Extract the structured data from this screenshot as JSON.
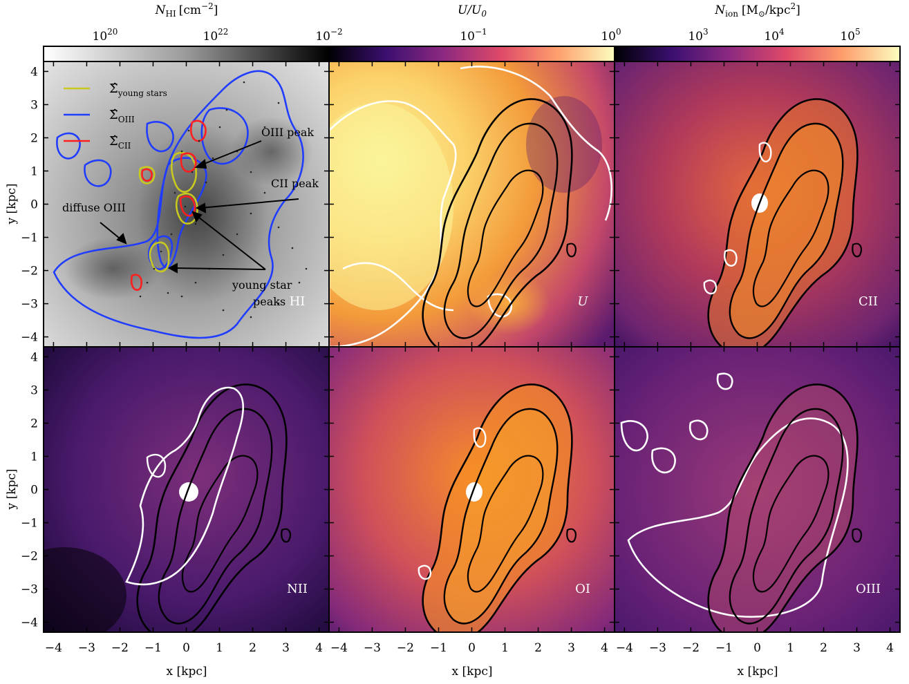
{
  "chart_data": [
    {
      "type": "heatmap",
      "panel": "HI",
      "label": "HI",
      "colormap": "grayscale",
      "colorbar": {
        "label_var": "N",
        "label_sub": "HI",
        "label_unit": "[cm",
        "label_exp": "−2",
        "label_close": "]",
        "scale": "log",
        "ticks": [
          {
            "base": "10",
            "exp": "20"
          },
          {
            "base": "10",
            "exp": "22"
          }
        ]
      },
      "xlim": [
        -4.3,
        4.3
      ],
      "ylim": [
        -4.3,
        4.3
      ],
      "ylabel": "y [kpc]",
      "legend": {
        "placement": "top-left",
        "entries": [
          {
            "name": "Σ̂",
            "sub": "young stars",
            "color": "#c8c820"
          },
          {
            "name": "Σ̂",
            "sub": "OIII",
            "color": "#1f3cff"
          },
          {
            "name": "Σ̂",
            "sub": "CII",
            "color": "#ff1f1f"
          }
        ]
      },
      "annotations": [
        {
          "text": "OIII peak",
          "x": 2.4,
          "y": 2.1
        },
        {
          "text": "CII peak",
          "x": 3.0,
          "y": 0.55
        },
        {
          "text": "diffuse OIII",
          "x": -3.6,
          "y": -0.1
        },
        {
          "text": "young star",
          "x": 1.4,
          "y": -2.5
        },
        {
          "text": "peaks",
          "x": 2.0,
          "y": -3.0
        }
      ]
    },
    {
      "type": "heatmap",
      "panel": "U",
      "label": "U",
      "colormap": "inferno",
      "colorbar": {
        "label": "U/U",
        "label_sub": "0",
        "scale": "log",
        "ticks": [
          {
            "base": "10",
            "exp": "−2"
          },
          {
            "base": "10",
            "exp": "−1"
          },
          {
            "base": "10",
            "exp": "0"
          }
        ]
      },
      "xlim": [
        -4.3,
        4.3
      ],
      "ylim": [
        -4.3,
        4.3
      ]
    },
    {
      "type": "heatmap",
      "panel": "CII",
      "label": "CII",
      "colormap": "inferno",
      "colorbar": {
        "label_var": "N",
        "label_sub": "ion",
        "label_unit": "[M",
        "label_sun_sub": "⊙",
        "label_tail": "/kpc",
        "label_exp": "2",
        "label_close": "]",
        "scale": "log",
        "ticks": [
          {
            "base": "10",
            "exp": "3"
          },
          {
            "base": "10",
            "exp": "4"
          },
          {
            "base": "10",
            "exp": "5"
          }
        ]
      },
      "xlim": [
        -4.3,
        4.3
      ],
      "ylim": [
        -4.3,
        4.3
      ]
    },
    {
      "type": "heatmap",
      "panel": "NII",
      "label": "NII",
      "colormap": "inferno",
      "xlim": [
        -4.3,
        4.3
      ],
      "ylim": [
        -4.3,
        4.3
      ],
      "xlabel": "x [kpc]",
      "ylabel": "y [kpc]"
    },
    {
      "type": "heatmap",
      "panel": "OI",
      "label": "OI",
      "colormap": "inferno",
      "xlim": [
        -4.3,
        4.3
      ],
      "ylim": [
        -4.3,
        4.3
      ],
      "xlabel": "x [kpc]"
    },
    {
      "type": "heatmap",
      "panel": "OIII",
      "label": "OIII",
      "colormap": "inferno",
      "xlim": [
        -4.3,
        4.3
      ],
      "ylim": [
        -4.3,
        4.3
      ],
      "xlabel": "x [kpc]"
    }
  ],
  "axis_ticks": [
    "−4",
    "−3",
    "−2",
    "−1",
    "0",
    "1",
    "2",
    "3",
    "4"
  ],
  "axis_tick_values": [
    -4,
    -3,
    -2,
    -1,
    0,
    1,
    2,
    3,
    4
  ],
  "x_axis_label": "x [kpc]",
  "y_axis_label": "y [kpc]"
}
